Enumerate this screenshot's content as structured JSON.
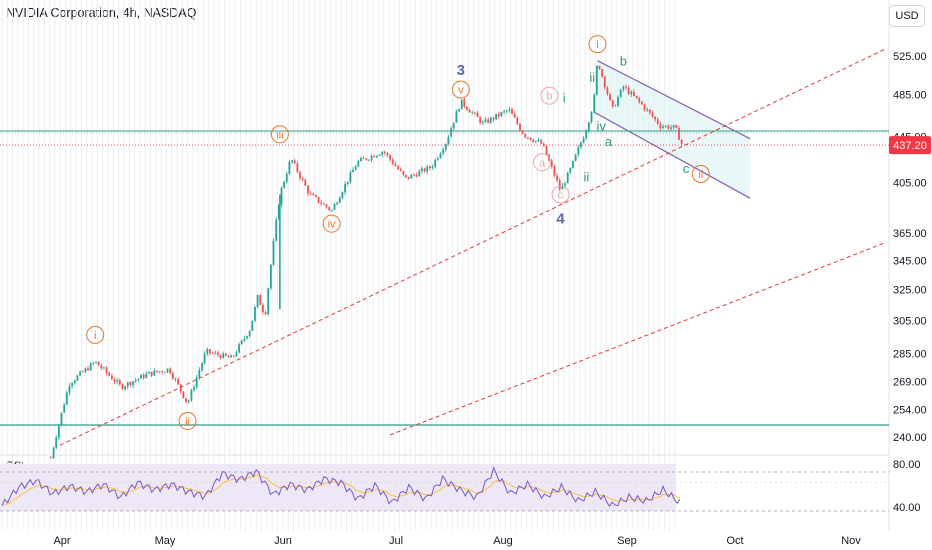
{
  "header": {
    "title": "NVIDIA Corporation, 4h, NASDAQ",
    "currency": "USD",
    "rsi_label": "RSI"
  },
  "price_tag": "437.20",
  "chart_data": {
    "type": "candlestick",
    "title": "NVIDIA Corporation, 4h, NASDAQ",
    "y_axis": {
      "scale": "log",
      "ticks": [
        "525.00",
        "485.00",
        "445.00",
        "405.00",
        "365.00",
        "345.00",
        "325.00",
        "305.00",
        "285.00",
        "269.00",
        "254.00",
        "240.00"
      ]
    },
    "x_axis": {
      "ticks": [
        "Apr",
        "May",
        "Jun",
        "Jul",
        "Aug",
        "Sep",
        "Oct",
        "Nov"
      ]
    },
    "last_price": 437.2,
    "horizontal_levels": [
      450,
      440,
      243
    ],
    "path": [
      {
        "date": "Mar 29",
        "price": 230
      },
      {
        "date": "Apr 3",
        "price": 268
      },
      {
        "date": "Apr 10",
        "price": 280
      },
      {
        "date": "Apr 17",
        "price": 266
      },
      {
        "date": "Apr 24",
        "price": 273
      },
      {
        "date": "Apr 30",
        "price": 276
      },
      {
        "date": "May 5",
        "price": 257
      },
      {
        "date": "May 10",
        "price": 286
      },
      {
        "date": "May 17",
        "price": 282
      },
      {
        "date": "May 22",
        "price": 300
      },
      {
        "date": "May 24",
        "price": 320
      },
      {
        "date": "May 26",
        "price": 308
      },
      {
        "date": "May 30",
        "price": 395
      },
      {
        "date": "Jun 2",
        "price": 425
      },
      {
        "date": "Jun 7",
        "price": 395
      },
      {
        "date": "Jun 13",
        "price": 382
      },
      {
        "date": "Jun 20",
        "price": 422
      },
      {
        "date": "Jun 27",
        "price": 432
      },
      {
        "date": "Jul 3",
        "price": 408
      },
      {
        "date": "Jul 10",
        "price": 418
      },
      {
        "date": "Jul 14",
        "price": 440
      },
      {
        "date": "Jul 18",
        "price": 478
      },
      {
        "date": "Jul 24",
        "price": 457
      },
      {
        "date": "Jul 31",
        "price": 470
      },
      {
        "date": "Aug 4",
        "price": 447
      },
      {
        "date": "Aug 9",
        "price": 438
      },
      {
        "date": "Aug 14",
        "price": 398
      },
      {
        "date": "Aug 17",
        "price": 418
      },
      {
        "date": "Aug 21",
        "price": 452
      },
      {
        "date": "Aug 23",
        "price": 478
      },
      {
        "date": "Aug 24",
        "price": 520
      },
      {
        "date": "Aug 28",
        "price": 470
      },
      {
        "date": "Aug 31",
        "price": 493
      },
      {
        "date": "Sep 5",
        "price": 475
      },
      {
        "date": "Sep 10",
        "price": 455
      },
      {
        "date": "Sep 14",
        "price": 453
      },
      {
        "date": "Sep 16",
        "price": 437
      }
    ],
    "rsi": {
      "levels": [
        80,
        40
      ],
      "values": [
        35,
        55,
        62,
        48,
        56,
        50,
        58,
        44,
        60,
        52,
        58,
        50,
        45,
        70,
        63,
        72,
        47,
        58,
        52,
        64,
        60,
        42,
        57,
        38,
        55,
        42,
        64,
        52,
        44,
        73,
        48,
        58,
        44,
        55,
        40,
        50,
        35,
        44,
        40,
        52,
        38
      ]
    },
    "wave_labels": [
      {
        "text": "i",
        "style": "circle",
        "color": "#e8762c",
        "date": "Apr 10",
        "price": 296
      },
      {
        "text": "ii",
        "style": "circle",
        "color": "#e8762c",
        "date": "May 5",
        "price": 248
      },
      {
        "text": "iii",
        "style": "circle",
        "color": "#e8762c",
        "date": "May 30",
        "price": 447
      },
      {
        "text": "iv",
        "style": "circle",
        "color": "#e8762c",
        "date": "Jun 13",
        "price": 372
      },
      {
        "text": "v",
        "style": "circle",
        "color": "#e8762c",
        "date": "Jul 18",
        "price": 490
      },
      {
        "text": "3",
        "style": "plain",
        "color": "#5b6aa8",
        "date": "Jul 18",
        "price": 510
      },
      {
        "text": "a",
        "style": "circle",
        "color": "#f2a5a5",
        "date": "Aug 9",
        "price": 422
      },
      {
        "text": "b",
        "style": "circle",
        "color": "#f2a5a5",
        "date": "Aug 11",
        "price": 484
      },
      {
        "text": "c",
        "style": "circle",
        "color": "#f2a5a5",
        "date": "Aug 14",
        "price": 395
      },
      {
        "text": "4",
        "style": "plain",
        "color": "#5b6aa8",
        "date": "Aug 14",
        "price": 376
      },
      {
        "text": "i",
        "style": "plain",
        "color": "#2e9d70",
        "date": "Aug 15",
        "price": 482
      },
      {
        "text": "ii",
        "style": "plain",
        "color": "#2e9d70",
        "date": "Aug 21",
        "price": 410
      },
      {
        "text": "iii",
        "style": "plain",
        "color": "#2e9d70",
        "date": "Aug 23",
        "price": 503
      },
      {
        "text": "iv",
        "style": "plain",
        "color": "#2e9d70",
        "date": "Aug 25",
        "price": 455
      },
      {
        "text": "i",
        "style": "circle",
        "color": "#e8762c",
        "date": "Aug 24",
        "price": 538
      },
      {
        "text": "b",
        "style": "plain",
        "color": "#2e9d70",
        "date": "Aug 31",
        "price": 520
      },
      {
        "text": "a",
        "style": "plain",
        "color": "#2e9d70",
        "date": "Aug 27",
        "price": 441
      },
      {
        "text": "c",
        "style": "plain",
        "color": "#2e9d70",
        "date": "Sep 17",
        "price": 417
      },
      {
        "text": "ii",
        "style": "circle",
        "color": "#e8762c",
        "date": "Sep 21",
        "price": 412
      }
    ],
    "colors": {
      "up": "#26a69a",
      "down": "#ef5350",
      "trend_dashed": "#e53935",
      "horizontal": "#2e9d8f",
      "channel": "#8061b3",
      "channel_fill": "#dff3f5",
      "rsi_line": "#7e57c2",
      "rsi_ma": "#f5c542",
      "rsi_band": "#ede7f6",
      "orange": "#e8762c",
      "price_tag": "#f23645"
    }
  }
}
